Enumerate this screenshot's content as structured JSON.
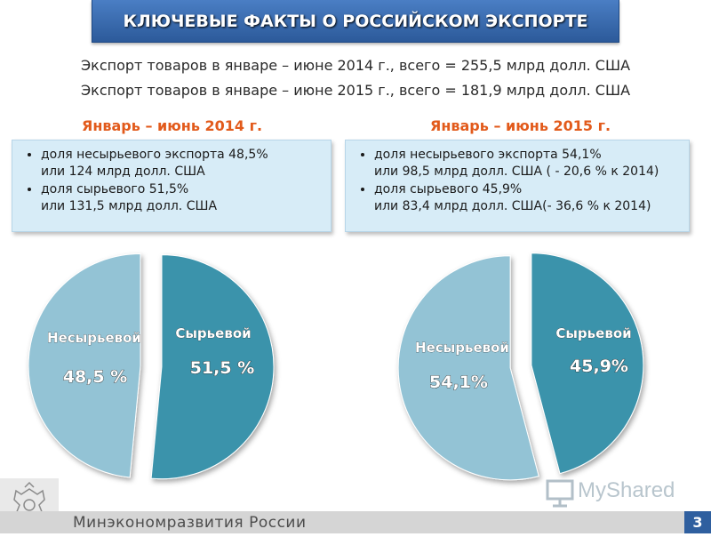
{
  "header": {
    "title": "КЛЮЧЕВЫЕ ФАКТЫ О РОССИЙСКОМ ЭКСПОРТЕ"
  },
  "summary": {
    "line1": "Экспорт  товаров в январе – июне 2014 г., всего = 255,5 млрд долл. США",
    "line2": "Экспорт  товаров в январе – июне 2015 г., всего = 181,9  млрд долл. США"
  },
  "left": {
    "period": "Январь – июнь 2014 г.",
    "bullets": [
      "доля несырьевого экспорта 48,5%\nили 124 млрд долл. США",
      "доля сырьевого 51,5%\nили 131,5 млрд  долл. США"
    ]
  },
  "right": {
    "period": "Январь – июнь 2015 г.",
    "bullets": [
      " доля несырьевого экспорта 54,1%\n  или 98,5 млрд  долл. США ( - 20,6 % к 2014)",
      "доля сырьевого 45,9%\n  или 83,4 млрд долл. США(- 36,6 % к 2014)"
    ]
  },
  "chart_data": [
    {
      "type": "pie",
      "title": "",
      "slices": [
        {
          "label": "Сырьевой",
          "value": 51.5,
          "value_label": "51,5 %",
          "color": "#3a93ab"
        },
        {
          "label": "Несырьевой",
          "value": 48.5,
          "value_label": "48,5 %",
          "color": "#93c3d5"
        }
      ]
    },
    {
      "type": "pie",
      "title": "",
      "slices": [
        {
          "label": "Сырьевой",
          "value": 45.9,
          "value_label": "45,9%",
          "color": "#3a93ab"
        },
        {
          "label": "Несырьевой",
          "value": 54.1,
          "value_label": "54,1%",
          "color": "#93c3d5"
        }
      ]
    }
  ],
  "footer": {
    "ministry": "Минэкономразвития России",
    "page_number": "3",
    "watermark": "MyShared"
  },
  "icons": {
    "emblem": "russian-coat-of-arms-icon",
    "watermark_icon": "presentation-screen-icon"
  }
}
